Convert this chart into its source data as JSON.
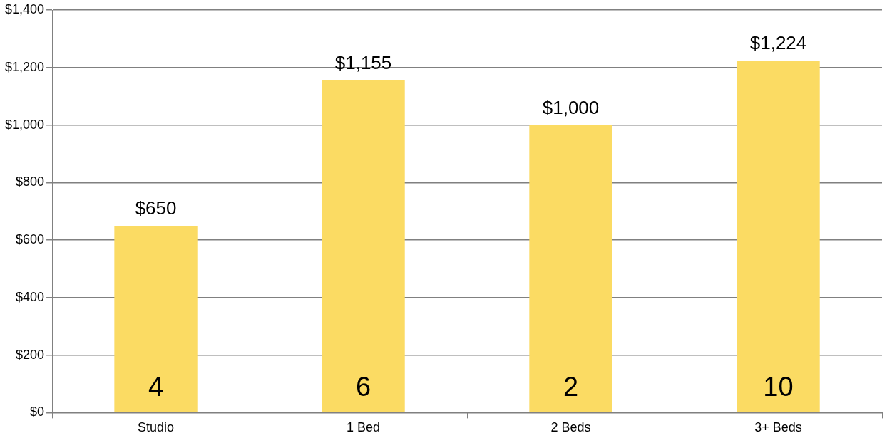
{
  "chart_data": {
    "type": "bar",
    "categories": [
      "Studio",
      "1 Bed",
      "2 Beds",
      "3+ Beds"
    ],
    "values": [
      650,
      1155,
      1000,
      1224
    ],
    "value_labels": [
      "$650",
      "$1,155",
      "$1,000",
      "$1,224"
    ],
    "color": "#fbdb63",
    "ylim": [
      0,
      1400
    ],
    "yticks": [
      {
        "value": 0,
        "label": "$0"
      },
      {
        "value": 200,
        "label": "$200"
      },
      {
        "value": 400,
        "label": "$400"
      },
      {
        "value": 600,
        "label": "$600"
      },
      {
        "value": 800,
        "label": "$800"
      },
      {
        "value": 1000,
        "label": "$1,000"
      },
      {
        "value": 1200,
        "label": "$1,200"
      },
      {
        "value": 1400,
        "label": "$1,400"
      }
    ],
    "grid": "y",
    "legend": false,
    "annotations": [
      "4",
      "6",
      "2",
      "10"
    ]
  }
}
